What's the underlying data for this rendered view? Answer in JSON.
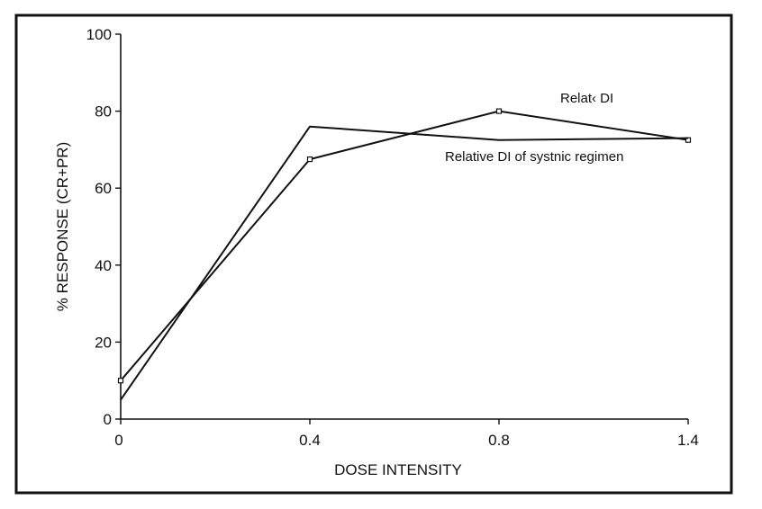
{
  "chart_data": {
    "type": "line",
    "title": "",
    "xlabel": "DOSE INTENSITY",
    "ylabel": "% RESPONSE (CR+PR)",
    "x_ticks": [
      "0",
      "0.4",
      "0.8",
      "1.4"
    ],
    "y_ticks": [
      "0",
      "20",
      "40",
      "60",
      "80",
      "100"
    ],
    "ylim": [
      0,
      100
    ],
    "x_scale": "categorical-evenly-spaced",
    "grid": false,
    "legend": "inline labels near line ends",
    "series": [
      {
        "name": "Relat‹ DI",
        "x": [
          "0",
          "0.4",
          "0.8",
          "1.4"
        ],
        "values": [
          10,
          67.5,
          80,
          72.5
        ],
        "markers": true
      },
      {
        "name": "Relative DI of systnic regimen",
        "x": [
          "0",
          "0.4",
          "0.8",
          "1.4"
        ],
        "values": [
          5,
          76,
          72.5,
          73
        ],
        "markers": false
      }
    ]
  }
}
